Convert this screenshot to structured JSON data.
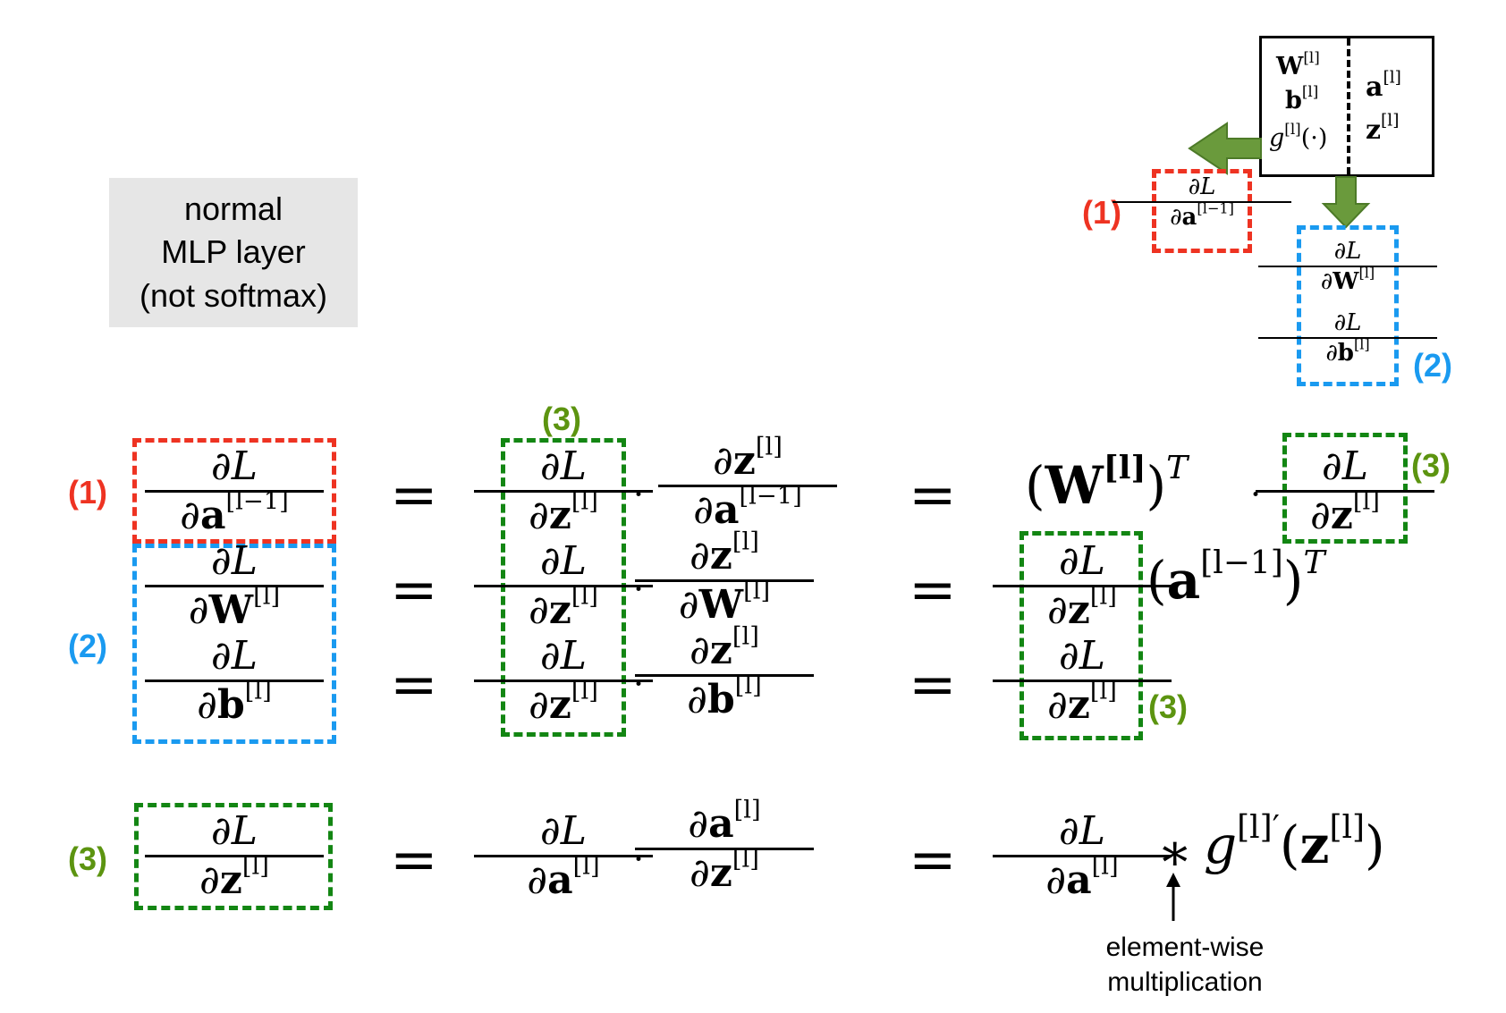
{
  "note": {
    "line1": "normal",
    "line2": "MLP layer",
    "line3": "(not softmax)"
  },
  "labels": {
    "one": "(1)",
    "two": "(2)",
    "three": "(3)"
  },
  "colors": {
    "red": "#ee3322",
    "blue": "#1a9af0",
    "green": "#138613",
    "green_text": "#5c9410",
    "arrow_green": "#6a9a3c",
    "note_bg": "#e6e6e6"
  },
  "math": {
    "dL": "∂L",
    "d": "∂",
    "eq": "=",
    "dot": "·",
    "z": "z",
    "a": "a",
    "W": "W",
    "b": "b",
    "g": "g",
    "sup_l": "[l]",
    "sup_l1": "[l−1]",
    "sup_bold_l": "[l]",
    "T": "T",
    "lparen": "(",
    "rparen": ")",
    "prime": "′",
    "star": "∗",
    "gdot": "(·)"
  },
  "caption": {
    "line1": "element-wise",
    "line2": "multiplication"
  }
}
